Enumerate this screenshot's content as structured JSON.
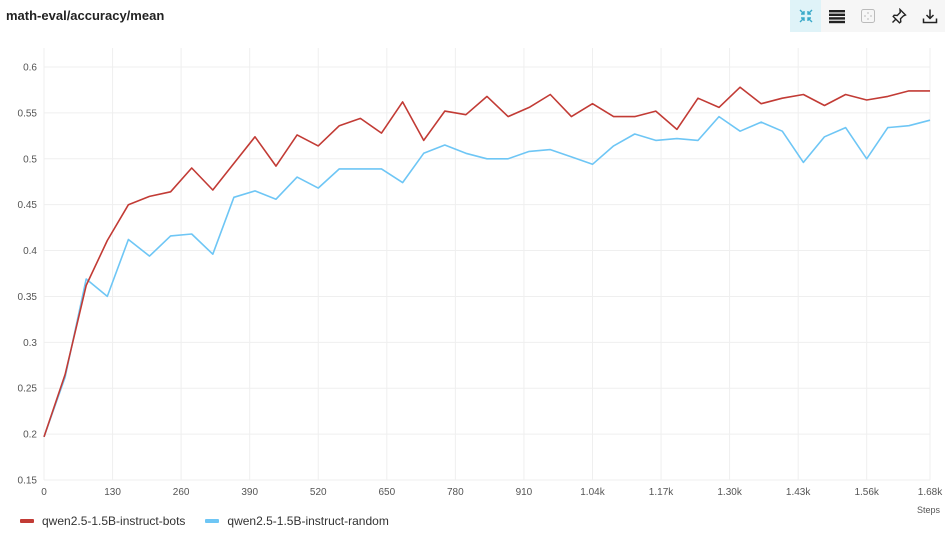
{
  "title": "math-eval/accuracy/mean",
  "toolbar": {
    "icons": [
      "collapse-icon",
      "list-icon",
      "focus-icon",
      "pin-icon",
      "download-icon"
    ]
  },
  "chart_data": {
    "type": "line",
    "title": "math-eval/accuracy/mean",
    "xlabel": "Steps",
    "ylabel": "",
    "xlim": [
      0,
      1680
    ],
    "ylim": [
      0.15,
      0.62
    ],
    "x_ticks": [
      0,
      130,
      260,
      390,
      520,
      650,
      780,
      910,
      1040,
      1170,
      1300,
      1430,
      1560,
      1680
    ],
    "x_tick_labels": [
      "0",
      "130",
      "260",
      "390",
      "520",
      "650",
      "780",
      "910",
      "1.04k",
      "1.17k",
      "1.30k",
      "1.43k",
      "1.56k",
      "1.68k"
    ],
    "y_ticks": [
      0.15,
      0.2,
      0.25,
      0.3,
      0.35,
      0.4,
      0.45,
      0.5,
      0.55,
      0.6
    ],
    "y_tick_labels": [
      "0.15",
      "0.2",
      "0.25",
      "0.3",
      "0.35",
      "0.4",
      "0.45",
      "0.5",
      "0.55",
      "0.6"
    ],
    "grid": true,
    "legend_position": "bottom-left",
    "x": [
      0,
      40,
      80,
      120,
      160,
      200,
      240,
      280,
      320,
      360,
      400,
      440,
      480,
      520,
      560,
      600,
      640,
      680,
      720,
      760,
      800,
      840,
      880,
      920,
      960,
      1000,
      1040,
      1080,
      1120,
      1160,
      1200,
      1240,
      1280,
      1320,
      1360,
      1400,
      1440,
      1480,
      1520,
      1560,
      1600,
      1640,
      1680
    ],
    "series": [
      {
        "name": "qwen2.5-1.5B-instruct-bots",
        "color": "#c23b35",
        "values": [
          0.197,
          0.265,
          0.362,
          0.411,
          0.45,
          0.459,
          0.464,
          0.49,
          0.466,
          0.495,
          0.524,
          0.492,
          0.526,
          0.514,
          0.536,
          0.544,
          0.528,
          0.562,
          0.52,
          0.552,
          0.548,
          0.568,
          0.546,
          0.556,
          0.57,
          0.546,
          0.56,
          0.546,
          0.546,
          0.552,
          0.532,
          0.566,
          0.556,
          0.578,
          0.56,
          0.566,
          0.57,
          0.558,
          0.57,
          0.564,
          0.568,
          0.574,
          0.574
        ]
      },
      {
        "name": "qwen2.5-1.5B-instruct-random",
        "color": "#6ec6f5",
        "values": [
          0.197,
          0.262,
          0.369,
          0.35,
          0.412,
          0.394,
          0.416,
          0.418,
          0.396,
          0.458,
          0.465,
          0.456,
          0.48,
          0.468,
          0.489,
          0.489,
          0.489,
          0.474,
          0.506,
          0.515,
          0.506,
          0.5,
          0.5,
          0.508,
          0.51,
          0.502,
          0.494,
          0.514,
          0.527,
          0.52,
          0.522,
          0.52,
          0.546,
          0.53,
          0.54,
          0.53,
          0.496,
          0.524,
          0.534,
          0.5,
          0.534,
          0.536,
          0.542
        ]
      }
    ]
  }
}
